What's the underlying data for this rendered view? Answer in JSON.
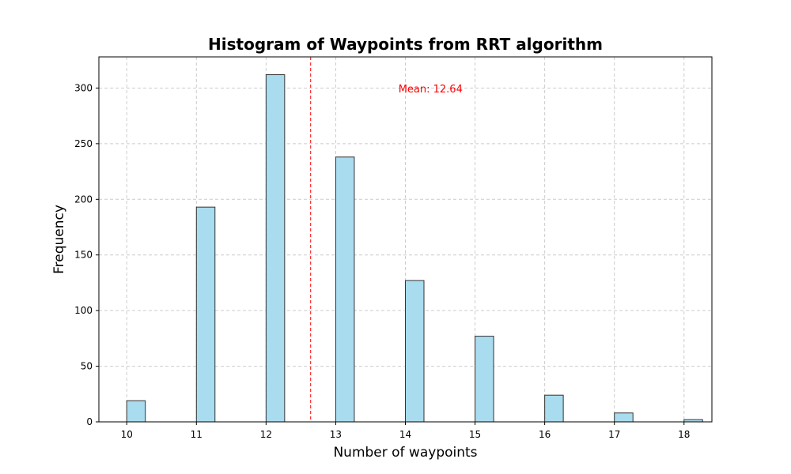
{
  "chart_data": {
    "type": "bar",
    "title": "Histogram of Waypoints from RRT algorithm",
    "xlabel": "Number of waypoints",
    "ylabel": "Frequency",
    "x": [
      10,
      11,
      12,
      13,
      14,
      15,
      16,
      17,
      18
    ],
    "values": [
      19,
      193,
      312,
      238,
      127,
      77,
      24,
      8,
      2
    ],
    "xlim": [
      9.6,
      18.4
    ],
    "ylim": [
      0,
      328
    ],
    "xticks": [
      "10",
      "11",
      "12",
      "13",
      "14",
      "15",
      "16",
      "17",
      "18"
    ],
    "yticks": [
      "0",
      "50",
      "100",
      "150",
      "200",
      "250",
      "300"
    ],
    "mean": 12.64,
    "mean_label": "Mean: 12.64",
    "grid": true,
    "grid_style": "dashed",
    "bar_color": "#a8dcee",
    "bar_edge_color": "#333333",
    "mean_line_color": "#ff0000"
  }
}
